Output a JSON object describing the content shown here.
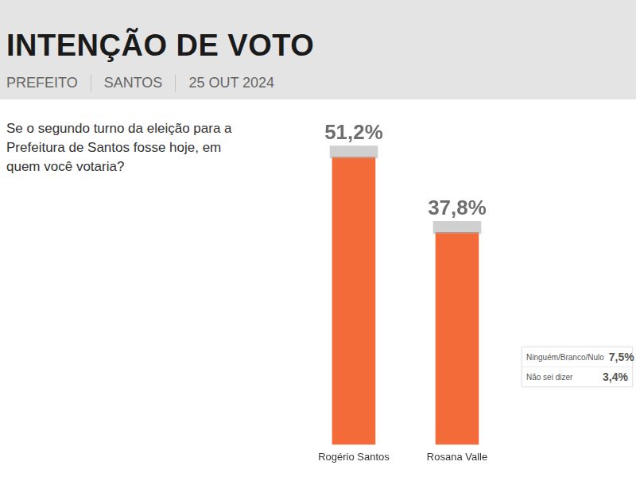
{
  "chart_data": {
    "type": "bar",
    "title": "INTENÇÃO DE VOTO",
    "subtitle": [
      "PREFEITO",
      "SANTOS",
      "25 OUT 2024"
    ],
    "question": "Se o segundo turno da eleição para a Prefeitura de Santos fosse hoje, em quem você votaria?",
    "categories": [
      "Rogério Santos",
      "Rosana Valle"
    ],
    "values": [
      51.2,
      37.8
    ],
    "value_labels": [
      "51,2%",
      "37,8%"
    ],
    "color": "#f26b38",
    "ylim": [
      0,
      60
    ],
    "grid": false,
    "data_labels": true,
    "tick_labels": "x",
    "others": [
      {
        "name": "Ninguém/Branco/Nulo",
        "value": 7.5,
        "value_label": "7,5%"
      },
      {
        "name": "Não sei dizer",
        "value": 3.4,
        "value_label": "3,4%"
      }
    ]
  }
}
